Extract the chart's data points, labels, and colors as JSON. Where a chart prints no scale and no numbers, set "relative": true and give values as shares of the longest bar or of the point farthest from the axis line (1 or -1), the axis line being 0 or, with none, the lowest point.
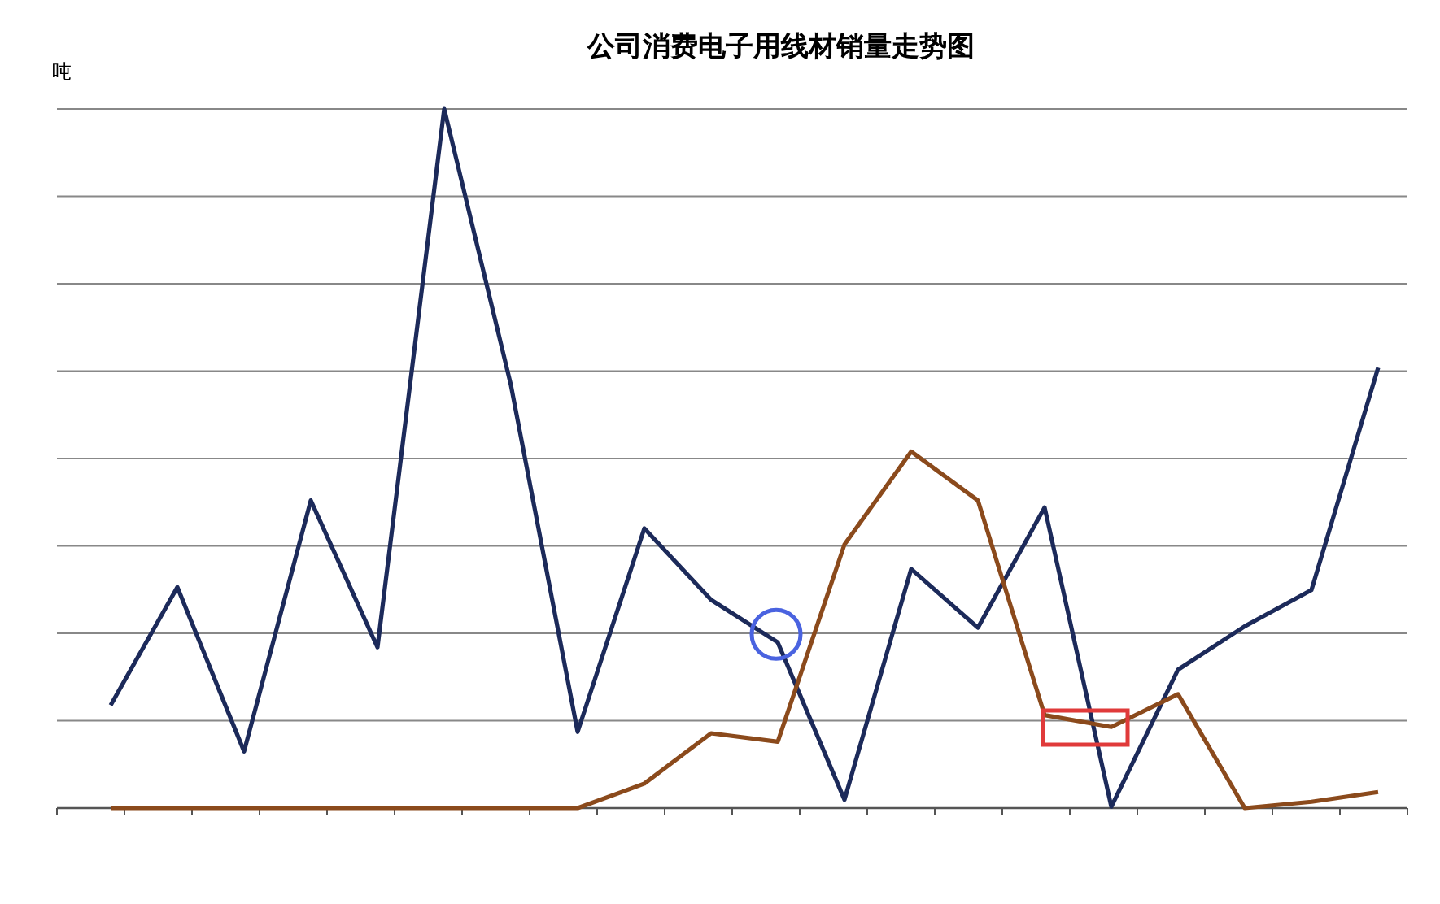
{
  "chart_data": {
    "type": "line",
    "title": "公司消费电子用线材销量走势图",
    "ylabel": "吨",
    "relative": true,
    "grid": "y",
    "line_style": "solid",
    "categories": [
      null,
      null,
      null,
      null,
      null,
      null,
      null,
      null,
      null,
      null,
      null,
      null,
      null,
      null,
      null,
      null,
      null,
      null,
      null,
      null
    ],
    "series": [
      {
        "color": "#1c2a5a",
        "values": [
          0.147,
          0.316,
          0.081,
          0.44,
          0.23,
          1,
          0.605,
          0.109,
          0.4,
          0.298,
          0.237,
          0.012,
          0.342,
          0.258,
          0.43,
          0.002,
          0.198,
          0.26,
          0.312,
          0.63
        ]
      },
      {
        "color": "#8b4a1c",
        "values": [
          0,
          0,
          0,
          0,
          0,
          0,
          0,
          0,
          0.035,
          0.107,
          0.095,
          0.377,
          0.51,
          0.44,
          0.133,
          0.116,
          0.163,
          0,
          0.009,
          0.023
        ]
      }
    ]
  }
}
